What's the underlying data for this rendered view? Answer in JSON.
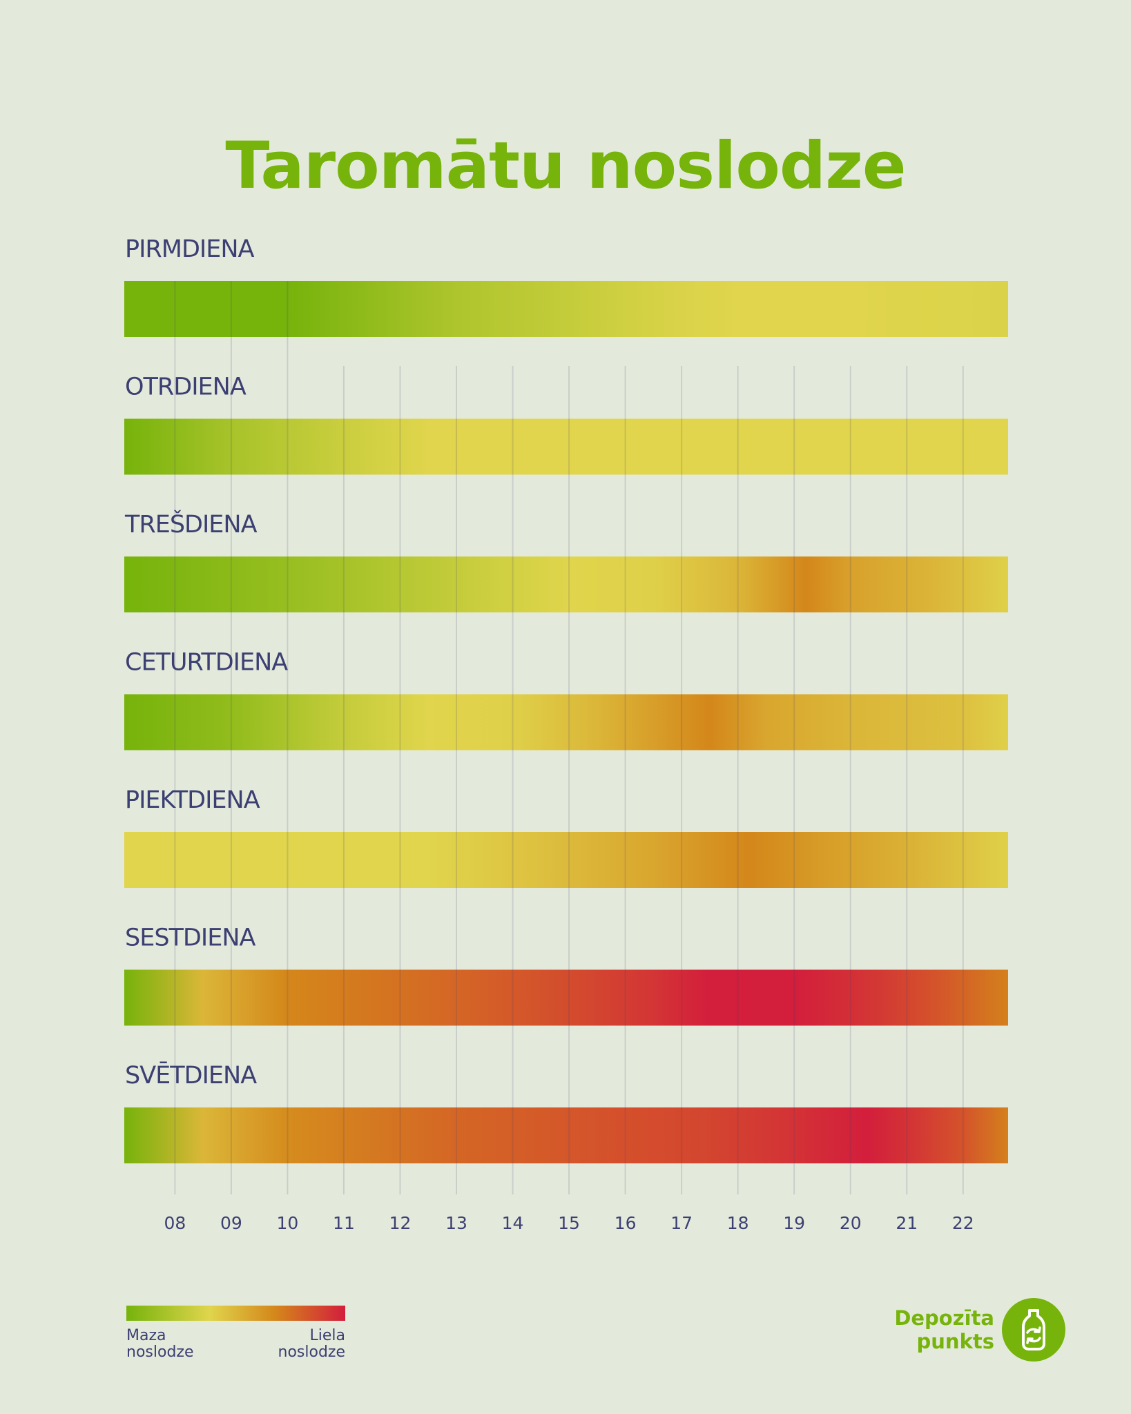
{
  "title": "Taromātu noslodze",
  "chart_data": {
    "type": "heatmap",
    "title": "Taromātu noslodze",
    "x_ticks": [
      "08",
      "09",
      "10",
      "11",
      "12",
      "13",
      "14",
      "15",
      "16",
      "17",
      "18",
      "19",
      "20",
      "21",
      "22"
    ],
    "x_range": [
      7.1,
      22.8
    ],
    "value_scale": {
      "min_label": "Maza noslodze",
      "max_label": "Liela noslodze",
      "range": [
        0,
        1
      ]
    },
    "colors": {
      "low": "#76b30b",
      "mid": "#e0d54c",
      "high": "#d4871a",
      "max": "#d31e3c"
    },
    "grid": true,
    "rows": [
      {
        "label": "PIRMDIENA",
        "points": [
          [
            7.1,
            0.0
          ],
          [
            10.0,
            0.0
          ],
          [
            13.0,
            0.2
          ],
          [
            15.5,
            0.3
          ],
          [
            17.0,
            0.36
          ],
          [
            18.0,
            0.38
          ],
          [
            20.0,
            0.38
          ],
          [
            22.8,
            0.36
          ]
        ]
      },
      {
        "label": "OTRDIENA",
        "points": [
          [
            7.1,
            0.0
          ],
          [
            9.0,
            0.18
          ],
          [
            11.0,
            0.3
          ],
          [
            12.5,
            0.38
          ],
          [
            22.8,
            0.38
          ]
        ]
      },
      {
        "label": "TREŠDIENA",
        "points": [
          [
            7.1,
            0.0
          ],
          [
            10.0,
            0.12
          ],
          [
            13.0,
            0.28
          ],
          [
            15.0,
            0.38
          ],
          [
            16.5,
            0.4
          ],
          [
            18.0,
            0.5
          ],
          [
            19.2,
            0.68
          ],
          [
            20.0,
            0.58
          ],
          [
            21.5,
            0.5
          ],
          [
            22.8,
            0.4
          ]
        ]
      },
      {
        "label": "CETURTDIENA",
        "points": [
          [
            7.1,
            0.0
          ],
          [
            9.0,
            0.1
          ],
          [
            11.0,
            0.28
          ],
          [
            12.5,
            0.38
          ],
          [
            14.0,
            0.4
          ],
          [
            15.5,
            0.5
          ],
          [
            17.5,
            0.68
          ],
          [
            18.5,
            0.56
          ],
          [
            20.0,
            0.5
          ],
          [
            22.0,
            0.46
          ],
          [
            22.8,
            0.4
          ]
        ]
      },
      {
        "label": "PIEKTDIENA",
        "points": [
          [
            7.1,
            0.38
          ],
          [
            12.5,
            0.38
          ],
          [
            14.5,
            0.46
          ],
          [
            16.5,
            0.56
          ],
          [
            18.2,
            0.68
          ],
          [
            19.5,
            0.6
          ],
          [
            21.0,
            0.52
          ],
          [
            22.8,
            0.4
          ]
        ]
      },
      {
        "label": "SESTDIENA",
        "points": [
          [
            7.1,
            0.0
          ],
          [
            8.5,
            0.5
          ],
          [
            10.0,
            0.68
          ],
          [
            13.0,
            0.78
          ],
          [
            15.0,
            0.86
          ],
          [
            16.5,
            0.93
          ],
          [
            17.5,
            1.0
          ],
          [
            19.0,
            1.0
          ],
          [
            20.5,
            0.92
          ],
          [
            21.5,
            0.84
          ],
          [
            22.8,
            0.7
          ]
        ]
      },
      {
        "label": "SVĒTDIENA",
        "points": [
          [
            7.1,
            0.0
          ],
          [
            8.5,
            0.5
          ],
          [
            10.0,
            0.66
          ],
          [
            13.0,
            0.78
          ],
          [
            15.5,
            0.84
          ],
          [
            17.5,
            0.88
          ],
          [
            19.0,
            0.94
          ],
          [
            20.3,
            1.0
          ],
          [
            21.0,
            0.94
          ],
          [
            22.0,
            0.84
          ],
          [
            22.8,
            0.7
          ]
        ]
      }
    ]
  },
  "legend": {
    "low_label": "Maza\nnoslodze",
    "high_label": "Liela\nnoslodze"
  },
  "brand": {
    "name": "Depozīta\npunkts",
    "icon": "bottle-recycle-icon"
  }
}
